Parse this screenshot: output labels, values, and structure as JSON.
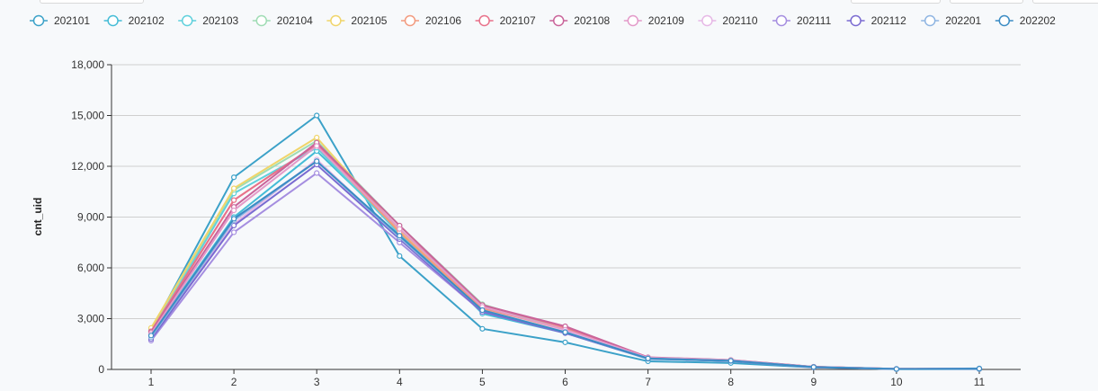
{
  "chart_data": {
    "type": "line",
    "xlabel": "",
    "ylabel": "cnt_uid",
    "x": [
      1,
      2,
      3,
      4,
      5,
      6,
      7,
      8,
      9,
      10,
      11
    ],
    "ylim": [
      0,
      18000
    ],
    "yticks": [
      "0",
      "3,000",
      "6,000",
      "9,000",
      "12,000",
      "15,000",
      "18,000"
    ],
    "grid": "horizontal",
    "legend_position": "top",
    "series": [
      {
        "name": "202101",
        "color": "#3ba1c8",
        "values": [
          2300,
          11350,
          15000,
          6700,
          2400,
          1600,
          480,
          380,
          120,
          20,
          20
        ]
      },
      {
        "name": "202102",
        "color": "#44bcd6",
        "values": [
          2050,
          9000,
          12900,
          8200,
          3300,
          2150,
          620,
          500,
          140,
          30,
          60
        ]
      },
      {
        "name": "202103",
        "color": "#5fd0dc",
        "values": [
          2200,
          10400,
          13100,
          8000,
          3500,
          2250,
          650,
          520,
          150,
          30,
          50
        ]
      },
      {
        "name": "202104",
        "color": "#9fdcb4",
        "values": [
          2350,
          10600,
          13500,
          8500,
          3850,
          2350,
          700,
          560,
          150,
          30,
          40
        ]
      },
      {
        "name": "202105",
        "color": "#f0d56a",
        "values": [
          2450,
          10700,
          13700,
          8200,
          3700,
          2300,
          680,
          540,
          140,
          25,
          40
        ]
      },
      {
        "name": "202106",
        "color": "#f29a7e",
        "values": [
          2250,
          10000,
          13300,
          8100,
          3600,
          2400,
          690,
          530,
          140,
          25,
          35
        ]
      },
      {
        "name": "202107",
        "color": "#e8718a",
        "values": [
          2250,
          10000,
          13300,
          8300,
          3800,
          2500,
          700,
          540,
          150,
          30,
          35
        ]
      },
      {
        "name": "202108",
        "color": "#c9649a",
        "values": [
          2200,
          9600,
          13400,
          8500,
          3800,
          2550,
          720,
          560,
          160,
          30,
          40
        ]
      },
      {
        "name": "202109",
        "color": "#e39ac9",
        "values": [
          2100,
          9400,
          13200,
          8300,
          3700,
          2350,
          700,
          550,
          150,
          30,
          40
        ]
      },
      {
        "name": "202110",
        "color": "#e6b8e6",
        "values": [
          1900,
          8600,
          12400,
          7800,
          3500,
          2250,
          660,
          520,
          140,
          30,
          40
        ]
      },
      {
        "name": "202111",
        "color": "#a58ee0",
        "values": [
          1700,
          8100,
          11600,
          7500,
          3400,
          2150,
          640,
          500,
          130,
          25,
          40
        ]
      },
      {
        "name": "202112",
        "color": "#7a6bd1",
        "values": [
          1800,
          8500,
          12100,
          7700,
          3400,
          2150,
          640,
          500,
          130,
          25,
          40
        ]
      },
      {
        "name": "202201",
        "color": "#8fb5e2",
        "values": [
          1900,
          8800,
          12300,
          7800,
          3500,
          2200,
          650,
          510,
          140,
          25,
          40
        ]
      },
      {
        "name": "202202",
        "color": "#3b8cc4",
        "values": [
          2000,
          8900,
          12300,
          7900,
          3500,
          2200,
          650,
          510,
          140,
          25,
          45
        ]
      }
    ]
  }
}
